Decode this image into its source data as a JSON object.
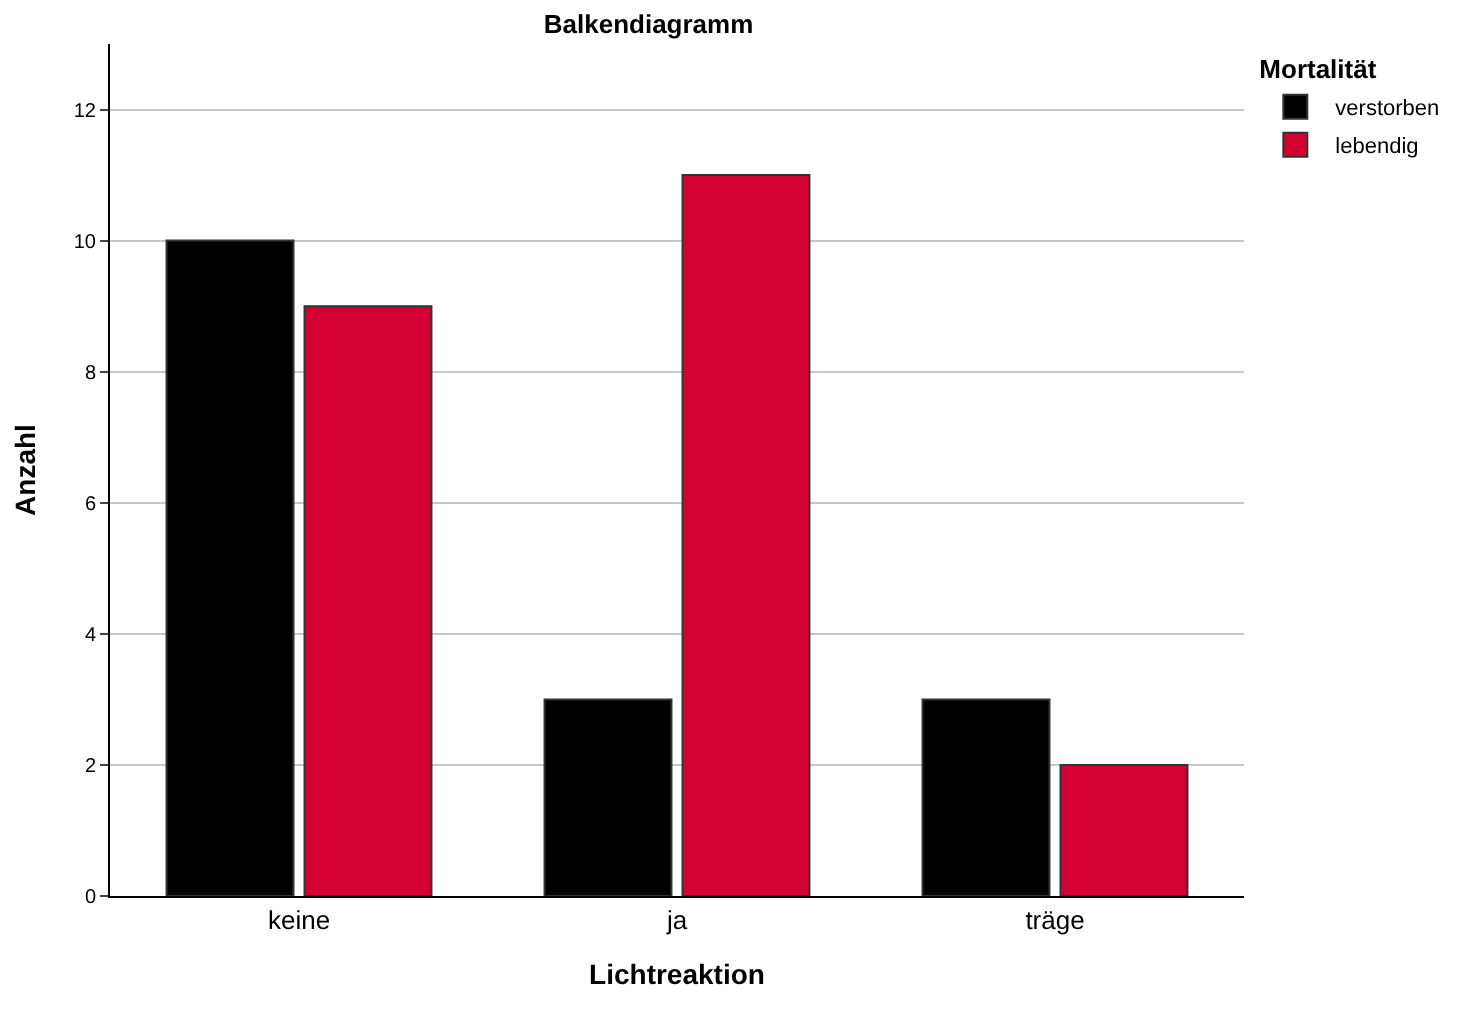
{
  "chart_data": {
    "type": "bar",
    "title": "Balkendiagramm",
    "xlabel": "Lichtreaktion",
    "ylabel": "Anzahl",
    "legend_title": "Mortalität",
    "categories": [
      "keine",
      "ja",
      "träge"
    ],
    "series": [
      {
        "name": "verstorben",
        "color": "#000000",
        "values": [
          10,
          3,
          3
        ]
      },
      {
        "name": "lebendig",
        "color": "#d50032",
        "values": [
          9,
          11,
          2
        ]
      }
    ],
    "ylim": [
      0,
      13
    ],
    "yticks": [
      0,
      2,
      4,
      6,
      8,
      10,
      12
    ],
    "grid": "y",
    "legend": "top right"
  }
}
